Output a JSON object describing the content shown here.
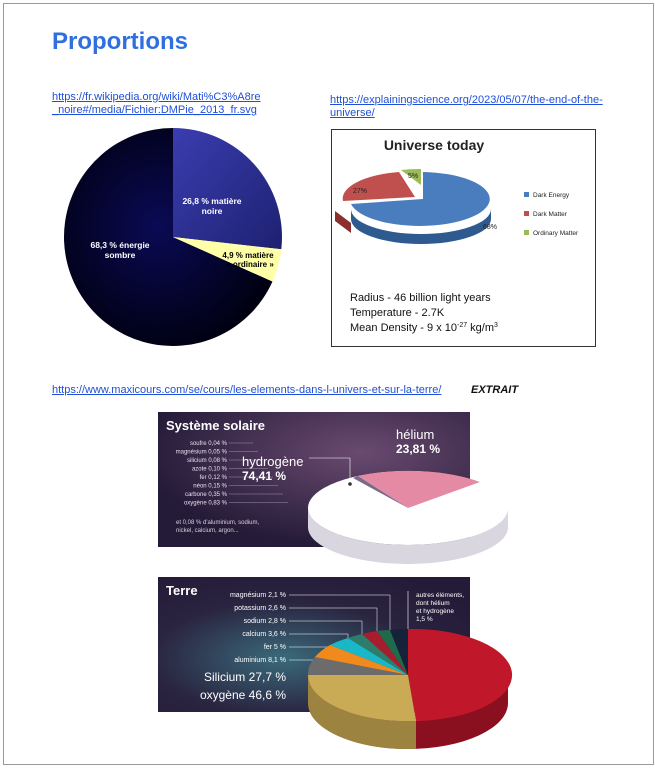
{
  "page": {
    "title": "Proportions"
  },
  "links": {
    "wikipedia_line1": "https://fr.wikipedia.org/wiki/Mati%C3%A8re",
    "wikipedia_line2": "_noire#/media/Fichier:DMPie_2013_fr.svg",
    "explaining_line1": "https://explainingscience.org/2023/05/07/the-end-of-the-",
    "explaining_line2": "universe/",
    "maxicours": "https://www.maxicours.com/se/cours/les-elements-dans-l-univers-et-sur-la-terre/",
    "extrait_label": "EXTRAIT"
  },
  "wiki_pie": {
    "slices": [
      {
        "label_l1": "68,3 % énergie",
        "label_l2": "sombre",
        "value": 68.3,
        "color": "#000033"
      },
      {
        "label_l1": "26,8 % matière",
        "label_l2": "noire",
        "value": 26.8,
        "color": "#2b2f8f"
      },
      {
        "label_l1": "4,9 % matière",
        "label_l2": "« ordinaire »",
        "value": 4.9,
        "color": "#ffff99"
      }
    ]
  },
  "universe_today": {
    "title": "Universe today",
    "slices": [
      {
        "name": "Dark Energy",
        "value": 68,
        "label": "68%",
        "color": "#4a7dbd"
      },
      {
        "name": "Dark Matter",
        "value": 27,
        "label": "27%",
        "color": "#c0504d"
      },
      {
        "name": "Ordinary Matter",
        "value": 5,
        "label": "5%",
        "color": "#9bbb59"
      }
    ],
    "facts": {
      "radius": "Radius - 46 billion light years",
      "temperature": "Temperature -  2.7K",
      "density_prefix": "Mean Density - 9 x 10",
      "density_exp": "-27",
      "density_unit": " kg/m",
      "density_unit_exp": "3"
    }
  },
  "solar_system": {
    "title": "Système solaire",
    "minor_elements": [
      "soufre 0,04 %",
      "magnésium 0,05 %",
      "silicium 0,08 %",
      "azote 0,10 %",
      "fer 0,12 %",
      "néon 0,15 %",
      "carbone 0,35 %",
      "oxygène 0,83 %"
    ],
    "others_l1": "et 0,08 % d'aluminium, sodium,",
    "others_l2": "nickel, calcium, argon...",
    "hydrogen_name": "hydrogène",
    "hydrogen_value": "74,41 %",
    "helium_name": "hélium",
    "helium_value": "23,81 %",
    "colors": {
      "hydrogen": "#ffffff",
      "helium": "#e58aa5",
      "panel": "#2a2140"
    }
  },
  "earth": {
    "title": "Terre",
    "elements": [
      {
        "label": "magnésium 2,1 %",
        "value": 2.1,
        "color": "#1f6a4a"
      },
      {
        "label": "potassium 2,6 %",
        "value": 2.6,
        "color": "#a81d2d"
      },
      {
        "label": "sodium 2,8 %",
        "value": 2.8,
        "color": "#2e7d6b"
      },
      {
        "label": "calcium 3,6 %",
        "value": 3.6,
        "color": "#19b8c8"
      },
      {
        "label": "fer 5 %",
        "value": 5,
        "color": "#f08a1c"
      },
      {
        "label": "aluminium 8,1 %",
        "value": 8.1,
        "color": "#6c6c6c"
      }
    ],
    "silicium": "Silicium 27,7 %",
    "oxygene": "oxygène 46,6 %",
    "others_l1": "autres éléments,",
    "others_l2": "dont hélium",
    "others_l3": "et hydrogène",
    "others_l4": "1,5 %",
    "colors": {
      "silicium": "#c9aa55",
      "oxygene": "#c0182a",
      "panel": "#2a2140"
    }
  }
}
